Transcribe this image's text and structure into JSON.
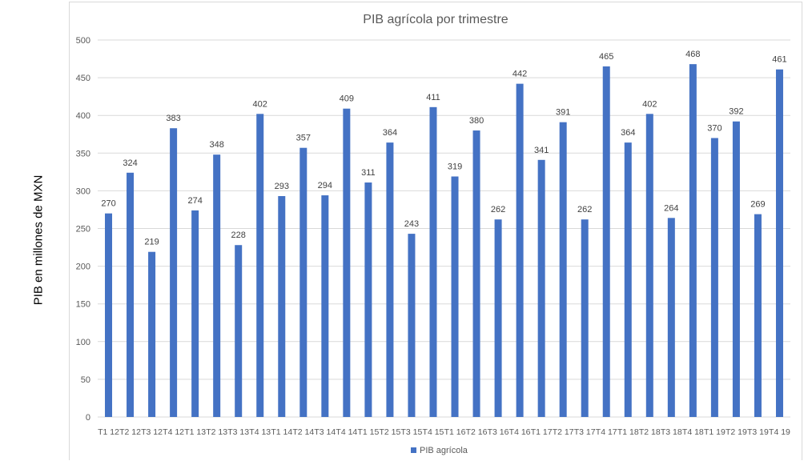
{
  "chart_data": {
    "type": "bar",
    "title": "PIB agrícola por trimestre",
    "xlabel": "",
    "ylabel": "PIB en millones de MXN",
    "ylim": [
      0,
      500
    ],
    "yticks": [
      0,
      50,
      100,
      150,
      200,
      250,
      300,
      350,
      400,
      450,
      500
    ],
    "grid": true,
    "legend_position": "bottom",
    "colors": {
      "bar": "#4472c4",
      "grid": "#d9d9d9",
      "text": "#595959"
    },
    "categories": [
      "T1 12",
      "T2 12",
      "T3 12",
      "T4 12",
      "T1 13",
      "T2 13",
      "T3 13",
      "T4 13",
      "T1 14",
      "T2 14",
      "T3 14",
      "T4 14",
      "T1 15",
      "T2 15",
      "T3 15",
      "T4 15",
      "T1 16",
      "T2 16",
      "T3 16",
      "T4 16",
      "T1 17",
      "T2 17",
      "T3 17",
      "T4 17",
      "T1 18",
      "T2 18",
      "T3 18",
      "T4 18",
      "T1 19",
      "T2 19",
      "T3 19",
      "T4 19"
    ],
    "series": [
      {
        "name": "PIB agrícola",
        "values": [
          270,
          324,
          219,
          383,
          274,
          348,
          228,
          402,
          293,
          357,
          294,
          409,
          311,
          364,
          243,
          411,
          319,
          380,
          262,
          442,
          341,
          391,
          262,
          465,
          364,
          402,
          264,
          468,
          370,
          392,
          269,
          461
        ]
      }
    ]
  }
}
